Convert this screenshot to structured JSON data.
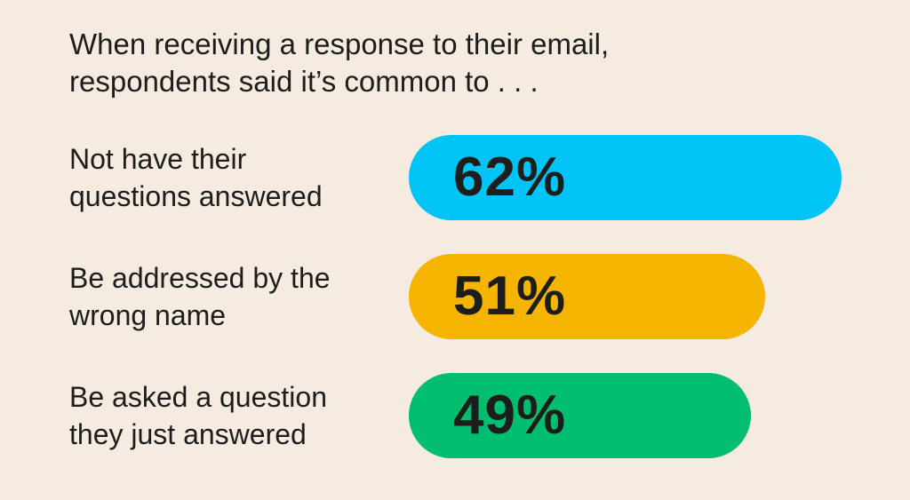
{
  "chart_data": {
    "type": "bar",
    "orientation": "horizontal",
    "title_lines": [
      "When receiving a response to their email,",
      "respondents said it’s common to . . ."
    ],
    "unit": "%",
    "categories": [
      [
        "Not have their",
        "questions answered"
      ],
      [
        "Be addressed by the",
        "wrong name"
      ],
      [
        "Be asked a question",
        "they just answered"
      ]
    ],
    "values": [
      62,
      51,
      49
    ],
    "value_labels": [
      "62%",
      "51%",
      "49%"
    ],
    "colors": [
      "#00c3f6",
      "#f5b400",
      "#00bd6f"
    ],
    "xlim": [
      0,
      62
    ],
    "grid": false,
    "legend": "none"
  }
}
